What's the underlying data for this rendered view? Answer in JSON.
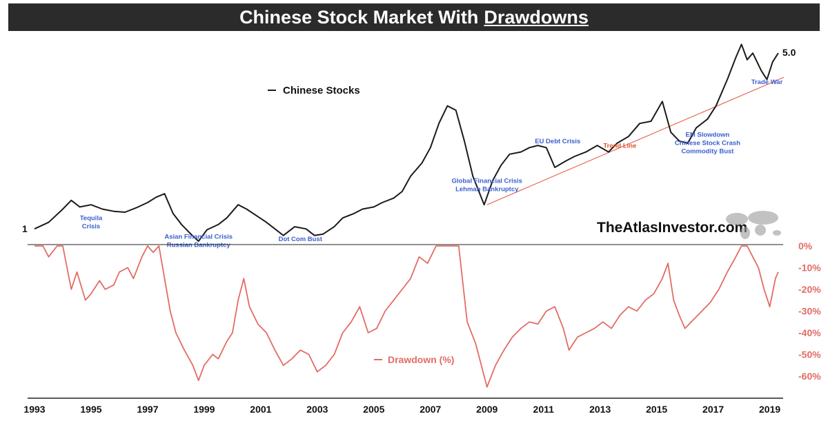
{
  "title_main": "Chinese Stock Market With",
  "title_underlined": "Drawdowns",
  "watermark": "TheAtlasInvestor.com",
  "chart_data": [
    {
      "type": "line",
      "name": "Chinese Stocks",
      "color": "#1a1a1a",
      "start_label": "1",
      "end_label": "5.0",
      "x": [
        1993.0,
        1993.5,
        1994.0,
        1994.3,
        1994.6,
        1995.0,
        1995.4,
        1995.8,
        1996.2,
        1996.6,
        1997.0,
        1997.3,
        1997.6,
        1997.9,
        1998.2,
        1998.5,
        1998.8,
        1999.1,
        1999.5,
        1999.8,
        2000.2,
        2000.5,
        2000.9,
        2001.2,
        2001.5,
        2001.8,
        2002.2,
        2002.6,
        2002.9,
        2003.2,
        2003.6,
        2003.9,
        2004.3,
        2004.6,
        2005.0,
        2005.3,
        2005.7,
        2006.0,
        2006.3,
        2006.7,
        2007.0,
        2007.3,
        2007.6,
        2007.9,
        2008.2,
        2008.5,
        2008.9,
        2009.2,
        2009.5,
        2009.8,
        2010.2,
        2010.5,
        2010.8,
        2011.1,
        2011.4,
        2011.8,
        2012.1,
        2012.5,
        2012.9,
        2013.3,
        2013.6,
        2014.0,
        2014.4,
        2014.8,
        2015.2,
        2015.5,
        2015.8,
        2016.1,
        2016.4,
        2016.8,
        2017.1,
        2017.5,
        2017.8,
        2018.0,
        2018.2,
        2018.4,
        2018.7,
        2018.9,
        2019.1,
        2019.3
      ],
      "y": [
        1.0,
        1.15,
        1.45,
        1.65,
        1.5,
        1.55,
        1.45,
        1.4,
        1.38,
        1.48,
        1.6,
        1.72,
        1.8,
        1.35,
        1.1,
        0.9,
        0.72,
        0.98,
        1.1,
        1.25,
        1.55,
        1.45,
        1.28,
        1.15,
        1.0,
        0.85,
        1.05,
        1.0,
        0.85,
        0.88,
        1.05,
        1.25,
        1.35,
        1.45,
        1.5,
        1.6,
        1.7,
        1.85,
        2.2,
        2.5,
        2.85,
        3.4,
        3.8,
        3.7,
        3.0,
        2.2,
        1.55,
        2.1,
        2.45,
        2.7,
        2.75,
        2.85,
        2.9,
        2.85,
        2.4,
        2.55,
        2.65,
        2.75,
        2.9,
        2.75,
        2.95,
        3.1,
        3.4,
        3.45,
        3.9,
        3.2,
        3.0,
        2.95,
        3.3,
        3.5,
        3.8,
        4.4,
        4.9,
        5.2,
        4.85,
        5.0,
        4.6,
        4.4,
        4.8,
        5.0
      ],
      "ylim": [
        0.8,
        5.3
      ],
      "annotations": [
        {
          "x": 1995.0,
          "y": 1.2,
          "lines": [
            "Tequila",
            "Crisis"
          ],
          "color": "#3a5fcd"
        },
        {
          "x": 1998.8,
          "y": 0.78,
          "lines": [
            "Asian Financial Crisis",
            "Russian Bankruptcy"
          ],
          "color": "#3a5fcd"
        },
        {
          "x": 2002.4,
          "y": 0.72,
          "lines": [
            "Dot Com Bust"
          ],
          "color": "#3a5fcd"
        },
        {
          "x": 2009.0,
          "y": 2.05,
          "lines": [
            "Global Financial Crisis",
            "Lehman Bankruptcy"
          ],
          "color": "#3a5fcd"
        },
        {
          "x": 2011.5,
          "y": 2.95,
          "lines": [
            "EU Debt Crisis"
          ],
          "color": "#3a5fcd"
        },
        {
          "x": 2016.8,
          "y": 3.1,
          "lines": [
            "EM Slowdown",
            "Chinese Stock Crash",
            "Commodity Bust"
          ],
          "color": "#3a5fcd"
        },
        {
          "x": 2018.9,
          "y": 4.3,
          "lines": [
            "Trade War"
          ],
          "color": "#3a5fcd"
        },
        {
          "x": 2013.7,
          "y": 2.85,
          "lines": [
            "Trend Line"
          ],
          "color": "#e0532f"
        }
      ],
      "trend_line": {
        "x": [
          2009.0,
          2019.5
        ],
        "y": [
          1.55,
          4.45
        ],
        "color": "#e86a5a",
        "label": "Trend Line"
      }
    },
    {
      "type": "line",
      "name": "Drawdown (%)",
      "color": "#e36b63",
      "x": [
        1993.0,
        1993.3,
        1993.5,
        1993.8,
        1994.0,
        1994.3,
        1994.5,
        1994.8,
        1995.0,
        1995.3,
        1995.5,
        1995.8,
        1996.0,
        1996.3,
        1996.5,
        1996.8,
        1997.0,
        1997.2,
        1997.4,
        1997.6,
        1997.8,
        1998.0,
        1998.3,
        1998.6,
        1998.8,
        1999.0,
        1999.3,
        1999.5,
        1999.8,
        2000.0,
        2000.2,
        2000.4,
        2000.6,
        2000.9,
        2001.2,
        2001.5,
        2001.8,
        2002.1,
        2002.4,
        2002.7,
        2003.0,
        2003.3,
        2003.6,
        2003.9,
        2004.2,
        2004.5,
        2004.8,
        2005.1,
        2005.4,
        2005.7,
        2006.0,
        2006.3,
        2006.6,
        2006.9,
        2007.2,
        2007.5,
        2007.8,
        2008.0,
        2008.3,
        2008.6,
        2008.8,
        2009.0,
        2009.3,
        2009.6,
        2009.9,
        2010.2,
        2010.5,
        2010.8,
        2011.1,
        2011.4,
        2011.7,
        2011.9,
        2012.2,
        2012.5,
        2012.8,
        2013.1,
        2013.4,
        2013.7,
        2014.0,
        2014.3,
        2014.6,
        2014.9,
        2015.2,
        2015.4,
        2015.6,
        2015.8,
        2016.0,
        2016.3,
        2016.6,
        2016.9,
        2017.2,
        2017.5,
        2017.8,
        2018.0,
        2018.2,
        2018.4,
        2018.6,
        2018.8,
        2019.0,
        2019.2,
        2019.3
      ],
      "y": [
        0,
        0,
        -5,
        0,
        0,
        -20,
        -12,
        -25,
        -22,
        -16,
        -20,
        -18,
        -12,
        -10,
        -15,
        -5,
        0,
        -3,
        0,
        -15,
        -30,
        -40,
        -48,
        -55,
        -62,
        -55,
        -50,
        -52,
        -44,
        -40,
        -25,
        -15,
        -28,
        -36,
        -40,
        -48,
        -55,
        -52,
        -48,
        -50,
        -58,
        -55,
        -50,
        -40,
        -35,
        -28,
        -40,
        -38,
        -30,
        -25,
        -20,
        -15,
        -5,
        -8,
        0,
        0,
        0,
        0,
        -35,
        -45,
        -55,
        -65,
        -55,
        -48,
        -42,
        -38,
        -35,
        -36,
        -30,
        -28,
        -38,
        -48,
        -42,
        -40,
        -38,
        -35,
        -38,
        -32,
        -28,
        -30,
        -25,
        -22,
        -15,
        -8,
        -25,
        -32,
        -38,
        -34,
        -30,
        -26,
        -20,
        -12,
        -5,
        0,
        0,
        -5,
        -10,
        -20,
        -28,
        -15,
        -12
      ],
      "ylim": [
        -68,
        3
      ],
      "yticks": [
        0,
        -10,
        -20,
        -30,
        -40,
        -50,
        -60
      ],
      "ytick_labels": [
        "0%",
        "-10%",
        "-20%",
        "-30%",
        "-40%",
        "-50%",
        "-60%"
      ]
    }
  ],
  "x_axis": {
    "range": [
      1993,
      2019.4
    ],
    "ticks": [
      1993,
      1995,
      1997,
      1999,
      2001,
      2003,
      2005,
      2007,
      2009,
      2011,
      2013,
      2015,
      2017,
      2019
    ],
    "tick_labels": [
      "1993",
      "1995",
      "1997",
      "1999",
      "2001",
      "2003",
      "2005",
      "2007",
      "2009",
      "2011",
      "2013",
      "2015",
      "2017",
      "2019"
    ]
  }
}
